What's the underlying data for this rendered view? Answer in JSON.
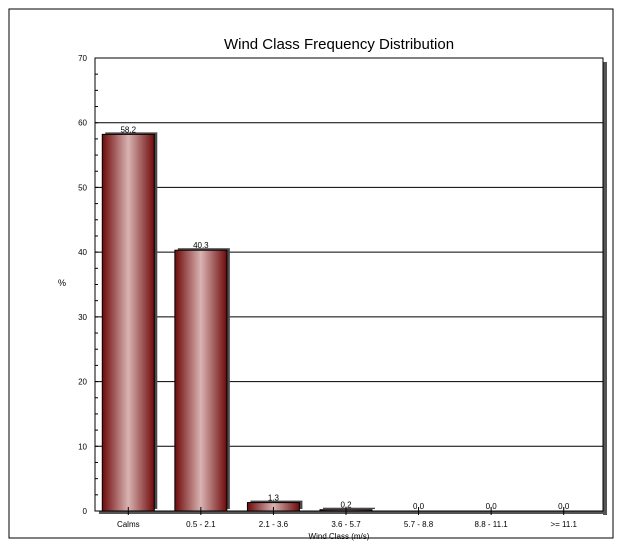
{
  "chart_data": {
    "type": "bar",
    "title": "Wind Class Frequency Distribution",
    "xlabel": "Wind Class (m/s)",
    "ylabel": "%",
    "ylim": [
      0,
      70
    ],
    "yticks": [
      0,
      10,
      20,
      30,
      40,
      50,
      60,
      70
    ],
    "grid": true,
    "categories": [
      "Calms",
      "0.5 - 2.1",
      "2.1 - 3.6",
      "3.6 - 5.7",
      "5.7 - 8.8",
      "8.8 - 11.1",
      ">= 11.1"
    ],
    "values": [
      58.2,
      40.3,
      1.3,
      0.2,
      0.0,
      0.0,
      0.0
    ],
    "data_labels": [
      "58.2",
      "40.3",
      "1.3",
      "0.2",
      "0.0",
      "0.0",
      "0.0"
    ],
    "colors": {
      "bar_dark": "#6e0a0a",
      "bar_light": "#d9b3b3",
      "grid": "#000000"
    }
  }
}
